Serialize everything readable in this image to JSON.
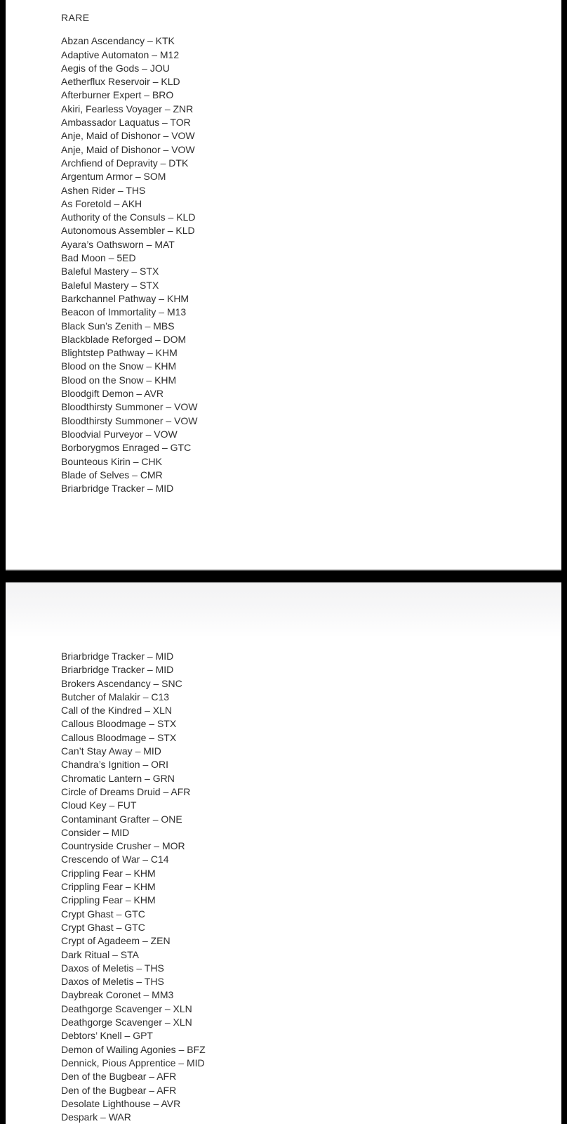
{
  "document": {
    "page1": {
      "heading": "RARE",
      "items": [
        "Abzan Ascendancy – KTK",
        "Adaptive Automaton – M12",
        "Aegis of the Gods – JOU",
        "Aetherflux Reservoir – KLD",
        "Afterburner Expert – BRO",
        "Akiri, Fearless Voyager – ZNR",
        "Ambassador Laquatus – TOR",
        "Anje, Maid of Dishonor – VOW",
        "Anje, Maid of Dishonor – VOW",
        "Archfiend of Depravity – DTK",
        "Argentum Armor – SOM",
        "Ashen Rider – THS",
        "As Foretold – AKH",
        "Authority of the Consuls – KLD",
        "Autonomous Assembler – KLD",
        "Ayara’s Oathsworn – MAT",
        "Bad Moon – 5ED",
        "Baleful Mastery – STX",
        "Baleful Mastery – STX",
        "Barkchannel Pathway – KHM",
        "Beacon of Immortality – M13",
        "Black Sun’s Zenith – MBS",
        "Blackblade Reforged – DOM",
        "Blightstep Pathway – KHM",
        "Blood on the Snow – KHM",
        "Blood on the Snow – KHM",
        "Bloodgift Demon – AVR",
        "Bloodthirsty Summoner – VOW",
        "Bloodthirsty Summoner – VOW",
        "Bloodvial Purveyor – VOW",
        "Borborygmos Enraged – GTC",
        "Bounteous Kirin – CHK",
        "Blade of Selves – CMR",
        "Briarbridge Tracker – MID"
      ]
    },
    "page2": {
      "items": [
        "Briarbridge Tracker – MID",
        "Briarbridge Tracker – MID",
        "Brokers Ascendancy – SNC",
        "Butcher of Malakir – C13",
        "Call of the Kindred – XLN",
        "Callous Bloodmage – STX",
        "Callous Bloodmage – STX",
        "Can’t Stay Away – MID",
        "Chandra’s Ignition – ORI",
        "Chromatic Lantern – GRN",
        "Circle of Dreams Druid – AFR",
        "Cloud Key – FUT",
        "Contaminant Grafter – ONE",
        "Consider – MID",
        "Countryside Crusher – MOR",
        "Crescendo of War – C14",
        "Crippling Fear – KHM",
        "Crippling Fear – KHM",
        "Crippling Fear – KHM",
        "Crypt Ghast – GTC",
        "Crypt Ghast – GTC",
        "Crypt of Agadeem – ZEN",
        "Dark Ritual – STA",
        "Daxos of Meletis – THS",
        "Daxos of Meletis – THS",
        "Daybreak Coronet – MM3",
        "Deathgorge Scavenger – XLN",
        "Deathgorge Scavenger – XLN",
        "Debtors’ Knell – GPT",
        "Demon of Wailing Agonies – BFZ",
        "Dennick, Pious Apprentice – MID",
        "Den of the Bugbear – AFR",
        "Den of the Bugbear – AFR",
        "Desolate Lighthouse – AVR",
        "Despark – WAR"
      ]
    }
  },
  "colors": {
    "background": "#000000",
    "page": "#ffffff",
    "text": "#2e2e2e"
  }
}
